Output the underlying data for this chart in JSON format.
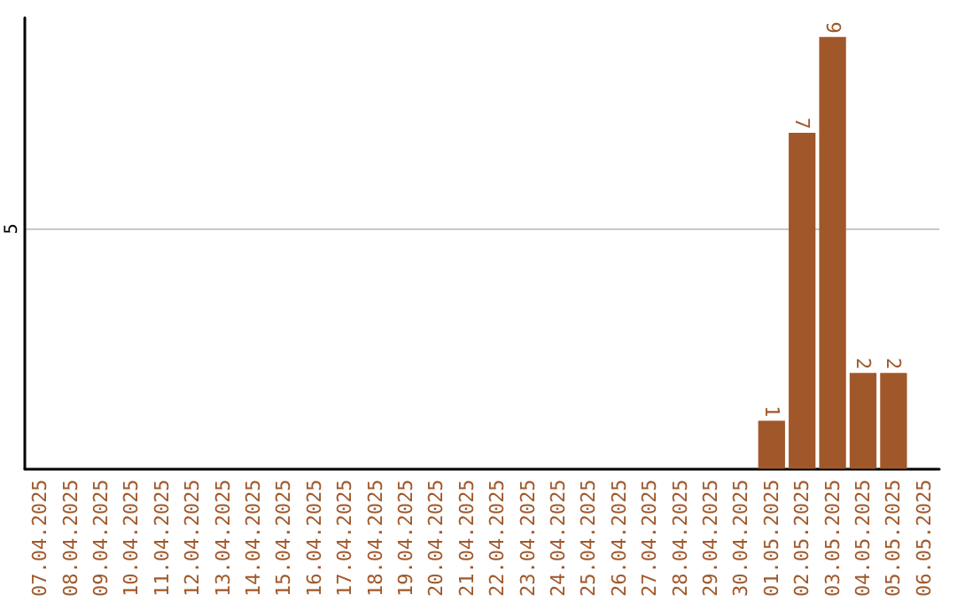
{
  "chart_data": {
    "type": "bar",
    "categories": [
      "07.04.2025",
      "08.04.2025",
      "09.04.2025",
      "10.04.2025",
      "11.04.2025",
      "12.04.2025",
      "13.04.2025",
      "14.04.2025",
      "15.04.2025",
      "16.04.2025",
      "17.04.2025",
      "18.04.2025",
      "19.04.2025",
      "20.04.2025",
      "21.04.2025",
      "22.04.2025",
      "23.04.2025",
      "24.04.2025",
      "25.04.2025",
      "26.04.2025",
      "27.04.2025",
      "28.04.2025",
      "29.04.2025",
      "30.04.2025",
      "01.05.2025",
      "02.05.2025",
      "03.05.2025",
      "04.05.2025",
      "05.05.2025",
      "06.05.2025"
    ],
    "values": [
      null,
      null,
      null,
      null,
      null,
      null,
      null,
      null,
      null,
      null,
      null,
      null,
      null,
      null,
      null,
      null,
      null,
      null,
      null,
      null,
      null,
      null,
      null,
      null,
      1,
      7,
      9,
      2,
      2,
      null
    ],
    "data_labels": true,
    "color": "#a0582a",
    "ylim": [
      0,
      9.4
    ],
    "yticks": [
      {
        "value": 5,
        "label": "5"
      }
    ],
    "grid": "y"
  }
}
